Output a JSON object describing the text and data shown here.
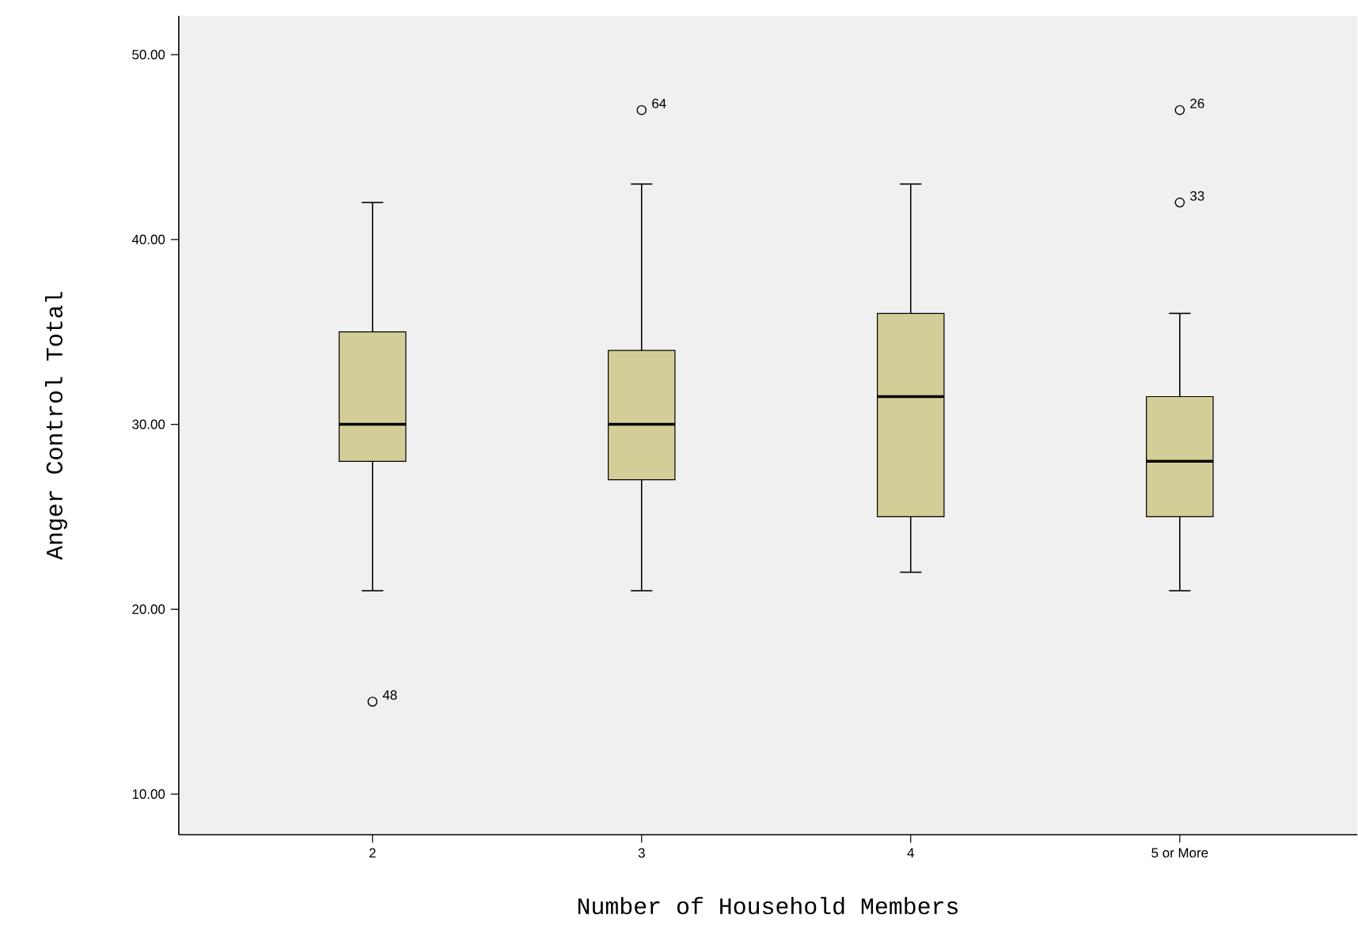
{
  "chart_data": {
    "type": "box",
    "xlabel": "Number of Household Members",
    "ylabel": "Anger Control Total",
    "categories": [
      "2",
      "3",
      "4",
      "5 or More"
    ],
    "color": "#d3ce98",
    "boxes": [
      {
        "low": 21,
        "q1": 28,
        "median": 30,
        "q3": 35,
        "high": 42,
        "outliers": [
          15
        ]
      },
      {
        "low": 21,
        "q1": 27,
        "median": 30,
        "q3": 34,
        "high": 43,
        "outliers": [
          47
        ]
      },
      {
        "low": 22,
        "q1": 25,
        "median": 31.5,
        "q3": 36,
        "high": 43
      },
      {
        "low": 21,
        "q1": 25,
        "median": 28,
        "q3": 31.5,
        "high": 36,
        "outliers": [
          47,
          42
        ]
      }
    ],
    "ylim": [
      7.8,
      52.1
    ],
    "yticks": [
      {
        "value": 10,
        "label": "10.00"
      },
      {
        "value": 20,
        "label": "20.00"
      },
      {
        "value": 30,
        "label": "30.00"
      },
      {
        "value": 40,
        "label": "40.00"
      },
      {
        "value": 50,
        "label": "50.00"
      }
    ],
    "annotations": [
      "48",
      "64",
      "26",
      "33"
    ],
    "grid": false
  }
}
